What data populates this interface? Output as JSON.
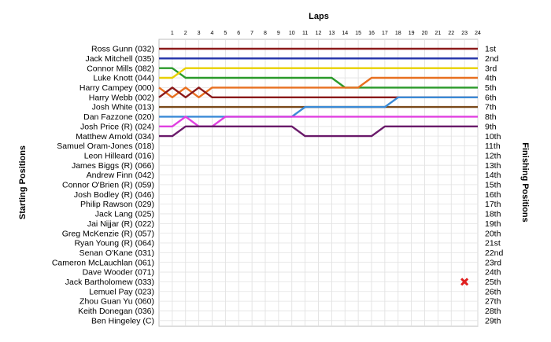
{
  "chart_data": {
    "type": "line",
    "title": "",
    "xlabel": "Laps",
    "ylabel_left": "Starting Positions",
    "ylabel_right": "Finishing Positions",
    "laps": [
      1,
      2,
      3,
      4,
      5,
      6,
      7,
      8,
      9,
      10,
      11,
      12,
      13,
      14,
      15,
      16,
      17,
      18,
      19,
      20,
      21,
      22,
      23,
      24
    ],
    "xlim": [
      0,
      24
    ],
    "grid": true,
    "starting_order": [
      "Ross Gunn (032)",
      "Jack Mitchell (035)",
      "Connor Mills (082)",
      "Luke Knott (044)",
      "Harry Campey (000)",
      "Harry Webb (002)",
      "Josh White (013)",
      "Dan Fazzone (020)",
      "Josh Price (R) (024)",
      "Matthew Arnold (034)",
      "Samuel Oram-Jones (018)",
      "Leon Hilleard (016)",
      "James Biggs (R) (066)",
      "Andrew Finn (042)",
      "Connor O'Brien (R) (059)",
      "Josh Bodley (R) (046)",
      "Philip Rawson (029)",
      "Jack Lang (025)",
      "Jai Nijjar (R) (022)",
      "Greg McKenzie (R) (057)",
      "Ryan Young (R) (064)",
      "Senan O'Kane (031)",
      "Cameron McLauchlan (061)",
      "Dave Wooder (071)",
      "Jack Bartholomew (033)",
      "Lemuel Pay (023)",
      "Zhou Guan Yu (060)",
      "Keith Donegan (036)",
      "Ben Hingeley (C)"
    ],
    "finishing_positions": [
      "1st",
      "2nd",
      "3rd",
      "4th",
      "5th",
      "6th",
      "7th",
      "8th",
      "9th",
      "10th",
      "11th",
      "12th",
      "13th",
      "14th",
      "15th",
      "16th",
      "17th",
      "18th",
      "19th",
      "20th",
      "21st",
      "22nd",
      "23rd",
      "24th",
      "25th",
      "26th",
      "27th",
      "28th",
      "29th"
    ],
    "retirement_marker": {
      "lap": 23,
      "position": 25
    },
    "series": [
      {
        "color": "#8b1a1a",
        "positions": [
          1,
          1,
          1,
          1,
          1,
          1,
          1,
          1,
          1,
          1,
          1,
          1,
          1,
          1,
          1,
          1,
          1,
          1,
          1,
          1,
          1,
          1,
          1,
          1,
          1
        ]
      },
      {
        "color": "#2233aa",
        "positions": [
          2,
          2,
          2,
          2,
          2,
          2,
          2,
          2,
          2,
          2,
          2,
          2,
          2,
          2,
          2,
          2,
          2,
          2,
          2,
          2,
          2,
          2,
          2,
          2,
          2
        ]
      },
      {
        "color": "#2a9a2a",
        "positions": [
          3,
          3,
          4,
          4,
          4,
          4,
          4,
          4,
          4,
          4,
          4,
          4,
          4,
          4,
          5,
          5,
          5,
          5,
          5,
          5,
          5,
          5,
          5,
          5,
          5
        ]
      },
      {
        "color": "#e8d000",
        "positions": [
          4,
          4,
          3,
          3,
          3,
          3,
          3,
          3,
          3,
          3,
          3,
          3,
          3,
          3,
          3,
          3,
          3,
          3,
          3,
          3,
          3,
          3,
          3,
          3,
          3
        ]
      },
      {
        "color": "#e87020",
        "positions": [
          5,
          6,
          5,
          6,
          5,
          5,
          5,
          5,
          5,
          5,
          5,
          5,
          5,
          5,
          5,
          5,
          4,
          4,
          4,
          4,
          4,
          4,
          4,
          4,
          4
        ]
      },
      {
        "color": "#8b1a1a",
        "positions": [
          6,
          5,
          6,
          5,
          6,
          6,
          6,
          6,
          6,
          6,
          6,
          6,
          6,
          6,
          6,
          6,
          6,
          6,
          6,
          6,
          6,
          6,
          6,
          6,
          6
        ]
      },
      {
        "color": "#7a4a1a",
        "positions": [
          7,
          7,
          7,
          7,
          7,
          7,
          7,
          7,
          7,
          7,
          7,
          7,
          7,
          7,
          7,
          7,
          7,
          7,
          7,
          7,
          7,
          7,
          7,
          7,
          7
        ]
      },
      {
        "color": "#3a8ad6",
        "positions": [
          8,
          8,
          8,
          8,
          8,
          8,
          8,
          8,
          8,
          8,
          8,
          7,
          7,
          7,
          7,
          7,
          7,
          7,
          6,
          6,
          6,
          6,
          6,
          6,
          6
        ]
      },
      {
        "color": "#e040e0",
        "positions": [
          9,
          9,
          8,
          9,
          9,
          8,
          8,
          8,
          8,
          8,
          8,
          8,
          8,
          8,
          8,
          8,
          8,
          8,
          8,
          8,
          8,
          8,
          8,
          8,
          8
        ]
      },
      {
        "color": "#6a1a6a",
        "positions": [
          10,
          10,
          9,
          9,
          9,
          9,
          9,
          9,
          9,
          9,
          9,
          10,
          10,
          10,
          10,
          10,
          10,
          9,
          9,
          9,
          9,
          9,
          9,
          9,
          9
        ]
      }
    ]
  }
}
